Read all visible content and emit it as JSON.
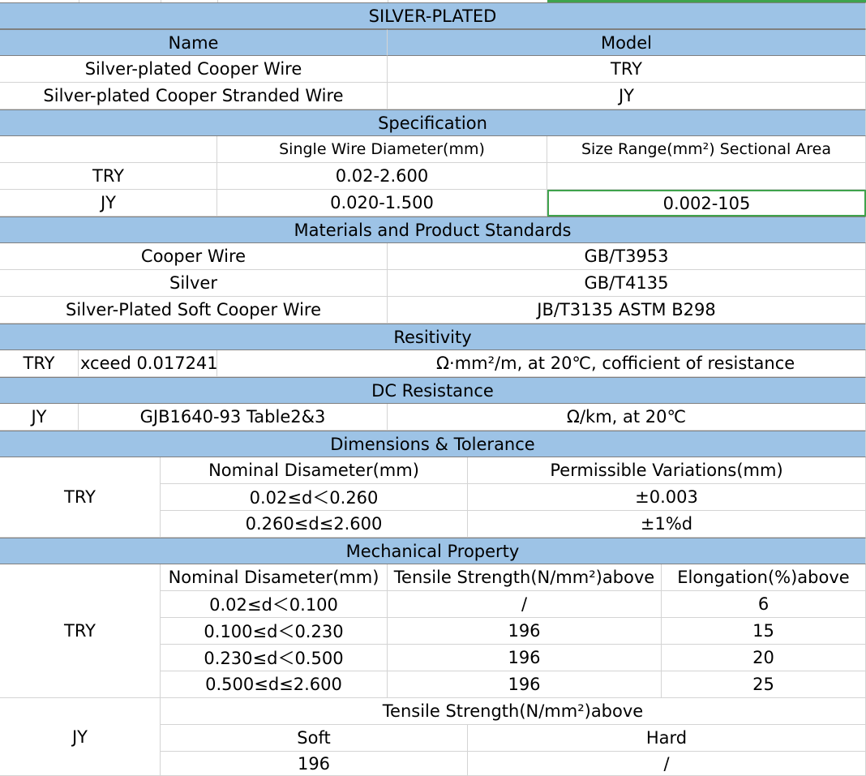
{
  "title": "SILVER-PLATED",
  "name_model": {
    "col_name": "Name",
    "col_model": "Model",
    "rows": [
      {
        "name": "Silver-plated Cooper Wire",
        "model": "TRY"
      },
      {
        "name": "Silver-plated Cooper Stranded Wire",
        "model": "JY"
      }
    ]
  },
  "specification": {
    "title": "Specification",
    "col_diameter": "Single Wire Diameter(mm)",
    "col_size": "Size Range(mm²) Sectional Area",
    "rows": [
      {
        "model": "TRY",
        "diameter": "0.02-2.600",
        "size": ""
      },
      {
        "model": "JY",
        "diameter": "0.020-1.500",
        "size": "0.002-105"
      }
    ]
  },
  "materials": {
    "title": "Materials and Product Standards",
    "rows": [
      {
        "name": "Cooper Wire",
        "standard": "GB/T3953"
      },
      {
        "name": "Silver",
        "standard": "GB/T4135"
      },
      {
        "name": "Silver-Plated Soft Cooper Wire",
        "standard": "JB/T3135 ASTM B298"
      }
    ]
  },
  "resistivity": {
    "title": "Resitivity",
    "model": "TRY",
    "value": "xceed 0.017241",
    "note": "Ω·mm²/m, at 20℃, cofficient of resistance"
  },
  "dc_resistance": {
    "title": "DC Resistance",
    "model": "JY",
    "value": "GJB1640-93 Table2&3",
    "note": "Ω/km, at 20℃"
  },
  "dimensions": {
    "title": "Dimensions & Tolerance",
    "model": "TRY",
    "col_nominal": "Nominal Disameter(mm)",
    "col_variation": "Permissible Variations(mm)",
    "rows": [
      {
        "nominal": "0.02≤d＜0.260",
        "variation": "±0.003"
      },
      {
        "nominal": "0.260≤d≤2.600",
        "variation": "±1%d"
      }
    ]
  },
  "mechanical": {
    "title": "Mechanical Property",
    "try": {
      "model": "TRY",
      "col_nominal": "Nominal Disameter(mm)",
      "col_tensile": "Tensile Strength(N/mm²)above",
      "col_elongation": "Elongation(%)above",
      "rows": [
        {
          "nominal": "0.02≤d＜0.100",
          "tensile": "/",
          "elongation": "6"
        },
        {
          "nominal": "0.100≤d＜0.230",
          "tensile": "196",
          "elongation": "15"
        },
        {
          "nominal": "0.230≤d＜0.500",
          "tensile": "196",
          "elongation": "20"
        },
        {
          "nominal": "0.500≤d≤2.600",
          "tensile": "196",
          "elongation": "25"
        }
      ]
    },
    "jy": {
      "model": "JY",
      "col_tensile": "Tensile Strength(N/mm²)above",
      "col_soft": "Soft",
      "col_hard": "Hard",
      "soft": "196",
      "hard": "/"
    }
  }
}
